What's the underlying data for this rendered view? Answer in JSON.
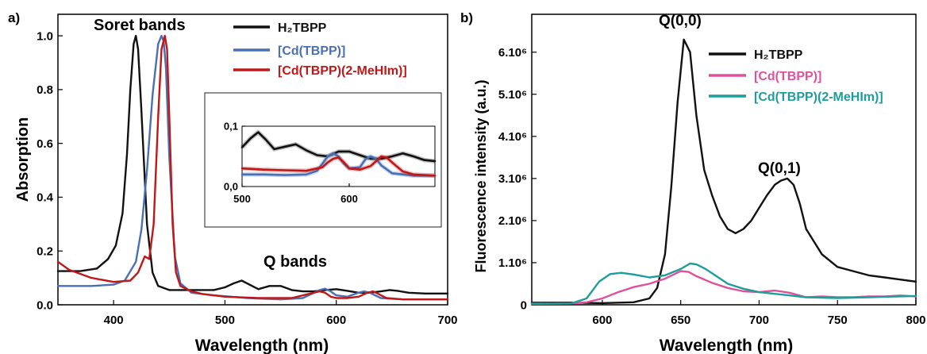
{
  "chart_data": [
    {
      "panel": "a)",
      "type": "line",
      "xlabel": "Wavelength (nm)",
      "ylabel": "Absorption",
      "xlim": [
        350,
        700
      ],
      "ylim": [
        0,
        1.08
      ],
      "xticks": [
        400,
        500,
        600,
        700
      ],
      "yticks": [
        0.0,
        0.2,
        0.4,
        0.6,
        0.8,
        1.0
      ],
      "xtick_labels": [
        "400",
        "500",
        "600",
        "700"
      ],
      "ytick_labels": [
        "0.0",
        "0.2",
        "0.4",
        "0.6",
        "0.8",
        "1.0"
      ],
      "annotations": [
        "Soret bands",
        "Q bands"
      ],
      "legend": {
        "position": "top-right",
        "entries": [
          {
            "label": "H₂TBPP",
            "color": "#111111"
          },
          {
            "label": "[Cd(TBPP)]",
            "color": "#4a6fb5"
          },
          {
            "label": "[Cd(TBPP)(2-MeHIm)]",
            "color": "#c01818"
          }
        ]
      },
      "series": [
        {
          "name": "H₂TBPP",
          "color": "#111111",
          "x": [
            350,
            370,
            385,
            395,
            402,
            408,
            412,
            415,
            418,
            420,
            422,
            425,
            430,
            435,
            440,
            450,
            470,
            490,
            500,
            508,
            515,
            522,
            530,
            540,
            550,
            560,
            570,
            580,
            590,
            600,
            610,
            620,
            630,
            640,
            648,
            655,
            665,
            680,
            700
          ],
          "y": [
            0.125,
            0.125,
            0.135,
            0.17,
            0.22,
            0.34,
            0.56,
            0.8,
            0.97,
            1.0,
            0.95,
            0.72,
            0.3,
            0.12,
            0.07,
            0.055,
            0.055,
            0.055,
            0.065,
            0.08,
            0.09,
            0.075,
            0.058,
            0.07,
            0.07,
            0.055,
            0.05,
            0.05,
            0.055,
            0.058,
            0.052,
            0.045,
            0.045,
            0.05,
            0.055,
            0.052,
            0.045,
            0.042,
            0.042
          ]
        },
        {
          "name": "[Cd(TBPP)]",
          "color": "#4a6fb5",
          "x": [
            350,
            380,
            400,
            410,
            420,
            425,
            430,
            435,
            440,
            443,
            445,
            447,
            450,
            455,
            460,
            470,
            490,
            520,
            550,
            570,
            580,
            585,
            590,
            595,
            600,
            610,
            620,
            625,
            630,
            640,
            660,
            700
          ],
          "y": [
            0.07,
            0.07,
            0.075,
            0.09,
            0.16,
            0.28,
            0.5,
            0.78,
            0.97,
            1.0,
            0.98,
            0.88,
            0.55,
            0.18,
            0.08,
            0.045,
            0.035,
            0.025,
            0.02,
            0.025,
            0.045,
            0.055,
            0.06,
            0.05,
            0.035,
            0.03,
            0.045,
            0.05,
            0.045,
            0.025,
            0.02,
            0.02
          ]
        },
        {
          "name": "[Cd(TBPP)(2-MeHIm)]",
          "color": "#c01818",
          "x": [
            350,
            360,
            380,
            400,
            415,
            422,
            428,
            432,
            436,
            440,
            443,
            446,
            448,
            450,
            453,
            456,
            460,
            470,
            480,
            500,
            530,
            560,
            575,
            585,
            590,
            595,
            600,
            610,
            620,
            628,
            633,
            638,
            645,
            660,
            700
          ],
          "y": [
            0.16,
            0.13,
            0.1,
            0.085,
            0.09,
            0.12,
            0.18,
            0.17,
            0.3,
            0.7,
            0.95,
            1.0,
            0.95,
            0.7,
            0.3,
            0.12,
            0.07,
            0.05,
            0.04,
            0.03,
            0.025,
            0.025,
            0.04,
            0.05,
            0.045,
            0.03,
            0.025,
            0.025,
            0.03,
            0.045,
            0.05,
            0.04,
            0.025,
            0.02,
            0.02
          ]
        }
      ],
      "inset": {
        "xlim": [
          500,
          680
        ],
        "ylim": [
          0,
          0.1
        ],
        "xticks": [
          500,
          600
        ],
        "yticks": [
          0.0,
          0.1
        ],
        "xtick_labels": [
          "500",
          "600"
        ],
        "ytick_labels": [
          "0,0",
          "0,1"
        ],
        "series": [
          {
            "name": "H₂TBPP",
            "color": "#111111",
            "x": [
              500,
              508,
              515,
              522,
              530,
              540,
              550,
              560,
              570,
              580,
              590,
              600,
              610,
              620,
              630,
              640,
              650,
              660,
              670,
              680
            ],
            "y": [
              0.065,
              0.08,
              0.09,
              0.078,
              0.062,
              0.066,
              0.07,
              0.06,
              0.052,
              0.05,
              0.058,
              0.058,
              0.052,
              0.046,
              0.046,
              0.05,
              0.055,
              0.05,
              0.044,
              0.042
            ]
          },
          {
            "name": "[Cd(TBPP)]",
            "color": "#4a6fb5",
            "x": [
              500,
              520,
              540,
              560,
              570,
              575,
              580,
              585,
              590,
              595,
              600,
              610,
              615,
              620,
              625,
              630,
              640,
              660,
              680
            ],
            "y": [
              0.02,
              0.02,
              0.019,
              0.02,
              0.026,
              0.038,
              0.05,
              0.055,
              0.05,
              0.038,
              0.03,
              0.032,
              0.045,
              0.05,
              0.046,
              0.035,
              0.022,
              0.018,
              0.018
            ]
          },
          {
            "name": "[Cd(TBPP)(2-MeHIm)]",
            "color": "#c01818",
            "x": [
              500,
              520,
              540,
              560,
              575,
              580,
              585,
              590,
              595,
              600,
              610,
              620,
              625,
              630,
              635,
              640,
              650,
              660,
              680
            ],
            "y": [
              0.03,
              0.028,
              0.027,
              0.026,
              0.032,
              0.04,
              0.046,
              0.048,
              0.04,
              0.03,
              0.028,
              0.034,
              0.042,
              0.05,
              0.048,
              0.04,
              0.025,
              0.02,
              0.018
            ]
          }
        ]
      }
    },
    {
      "panel": "b)",
      "type": "line",
      "xlabel": "Wavelength (nm)",
      "ylabel": "Fluorescence intensity (a.u.)",
      "xlim": [
        555,
        800
      ],
      "ylim": [
        0,
        6900000
      ],
      "xticks": [
        600,
        650,
        700,
        750,
        800
      ],
      "yticks": [
        0,
        1000000,
        2000000,
        3000000,
        4000000,
        5000000,
        6000000
      ],
      "xtick_labels": [
        "600",
        "650",
        "700",
        "750",
        "800"
      ],
      "ytick_labels": [
        "0",
        "1.10⁶",
        "2.10⁶",
        "3.10⁶",
        "4.10⁶",
        "5.10⁶",
        "6.10⁶"
      ],
      "annotations": [
        "Q(0,0)",
        "Q(0,1)"
      ],
      "legend": {
        "position": "top-right",
        "entries": [
          {
            "label": "H₂TBPP",
            "color": "#111111"
          },
          {
            "label": "[Cd(TBPP)]",
            "color": "#e0509a"
          },
          {
            "label": "[Cd(TBPP)(2-MeHIm)]",
            "color": "#1e9e9a"
          }
        ]
      },
      "series": [
        {
          "name": "H₂TBPP",
          "color": "#111111",
          "x": [
            555,
            580,
            600,
            620,
            630,
            635,
            640,
            644,
            648,
            652,
            656,
            660,
            665,
            670,
            675,
            680,
            685,
            690,
            695,
            700,
            705,
            710,
            714,
            718,
            722,
            726,
            730,
            740,
            750,
            760,
            770,
            780,
            790,
            800
          ],
          "y": [
            50000,
            50000,
            40000,
            60000,
            150000,
            400000,
            1200000,
            2800000,
            4800000,
            6300000,
            6000000,
            4500000,
            3200000,
            2600000,
            2100000,
            1800000,
            1700000,
            1800000,
            2000000,
            2300000,
            2600000,
            2850000,
            2950000,
            3000000,
            2850000,
            2400000,
            1800000,
            1200000,
            900000,
            800000,
            700000,
            650000,
            600000,
            550000
          ]
        },
        {
          "name": "[Cd(TBPP)]",
          "color": "#e0509a",
          "x": [
            555,
            580,
            590,
            600,
            610,
            620,
            630,
            640,
            650,
            655,
            660,
            670,
            680,
            690,
            700,
            710,
            720,
            730,
            740,
            750,
            760,
            770,
            780,
            790,
            800
          ],
          "y": [
            30000,
            30000,
            60000,
            150000,
            300000,
            420000,
            500000,
            620000,
            800000,
            780000,
            680000,
            520000,
            400000,
            320000,
            300000,
            340000,
            280000,
            180000,
            200000,
            180000,
            180000,
            200000,
            200000,
            220000,
            200000
          ]
        },
        {
          "name": "[Cd(TBPP)(2-MeHIm)]",
          "color": "#1e9e9a",
          "x": [
            555,
            580,
            590,
            598,
            605,
            612,
            620,
            630,
            640,
            650,
            656,
            660,
            665,
            670,
            680,
            690,
            700,
            710,
            720,
            730,
            740,
            750,
            760,
            770,
            780,
            790,
            800
          ],
          "y": [
            20000,
            30000,
            150000,
            550000,
            730000,
            760000,
            720000,
            650000,
            700000,
            850000,
            980000,
            960000,
            870000,
            750000,
            500000,
            380000,
            300000,
            260000,
            220000,
            180000,
            170000,
            160000,
            170000,
            180000,
            190000,
            200000,
            210000
          ]
        }
      ]
    }
  ]
}
